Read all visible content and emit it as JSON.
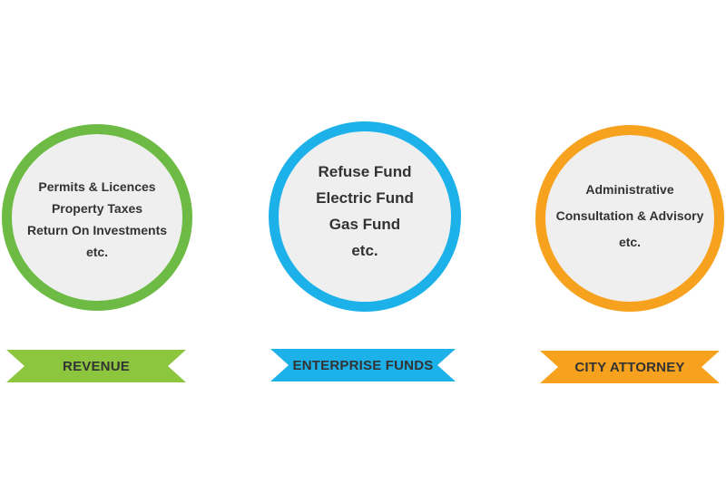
{
  "groups": [
    {
      "label": "REVENUE",
      "color": "#6dbb45",
      "ribbon_color": "#8cc63f",
      "items": [
        "Permits & Licences",
        "Property Taxes",
        "Return On Investments",
        "etc."
      ]
    },
    {
      "label": "ENTERPRISE FUNDS",
      "color": "#1db1ea",
      "ribbon_color": "#1db1ea",
      "items": [
        "Refuse Fund",
        "Electric Fund",
        "Gas Fund",
        "etc."
      ]
    },
    {
      "label": "CITY ATTORNEY",
      "color": "#f7a21e",
      "ribbon_color": "#f7a21e",
      "items": [
        "Administrative",
        "Consultation & Advisory",
        "etc."
      ]
    }
  ]
}
